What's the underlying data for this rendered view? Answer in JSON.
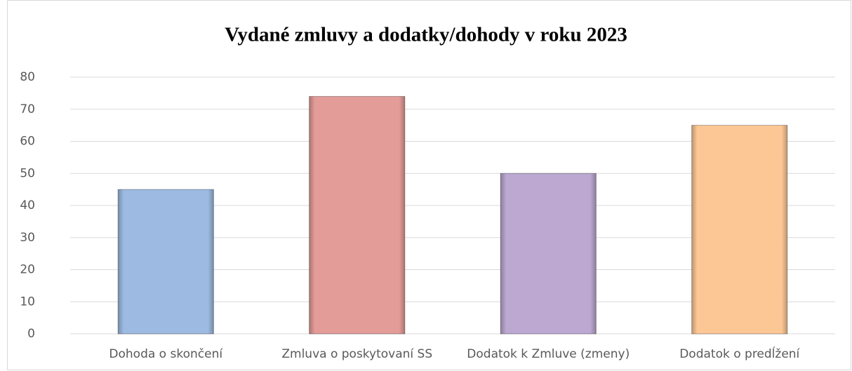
{
  "chart_data": {
    "type": "bar",
    "title": "Vydané zmluvy a dodatky/dohody v roku 2023",
    "categories": [
      "Dohoda o skončení",
      "Zmluva o poskytovaní SS",
      "Dodatok k Zmluve (zmeny)",
      "Dodatok o predĺžení"
    ],
    "values": [
      45,
      74,
      50,
      65
    ],
    "colors": [
      "#9dbbe2",
      "#e49c99",
      "#bca8d1",
      "#fdc795"
    ],
    "ylim": [
      0,
      80
    ],
    "yticks": [
      0,
      10,
      20,
      30,
      40,
      50,
      60,
      70,
      80
    ],
    "grid": true
  }
}
